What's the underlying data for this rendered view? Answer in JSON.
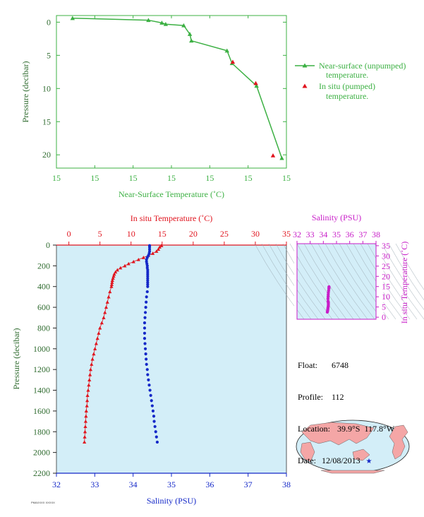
{
  "colors": {
    "green": "#3cb043",
    "red": "#e0141e",
    "blue": "#1428c8",
    "magenta": "#c81ec8",
    "axisgreen": "#2f6b2f",
    "navy": "#1a1a8c",
    "panel_bg": "#d3eef8"
  },
  "top_legend": {
    "near_surface": "Near-surface (unpumped)",
    "near_surface_2": "temperature.",
    "in_situ": "In situ (pumped)",
    "in_situ_2": "temperature."
  },
  "float_info": {
    "float_label": "Float:",
    "float_value": "6748",
    "profile_label": "Profile:",
    "profile_value": "112",
    "location_label": "Location:",
    "location_value": "39.9°S  117.8°W",
    "date_label": "Date:",
    "date_value": "12/08/2013"
  },
  "footer_tag": "PMAXXXX XXXXX",
  "chart_data": [
    {
      "type": "line",
      "xlabel": "Near-Surface Temperature (˚C)",
      "ylabel": "Pressure (decibar)",
      "x_ticks": [
        "15",
        "15",
        "15",
        "15",
        "15",
        "15",
        "15"
      ],
      "y_ticks": [
        "0",
        "5",
        "10",
        "15",
        "20"
      ],
      "ylim": [
        -1,
        22
      ],
      "xlim": [
        0,
        6
      ],
      "y_inverted": true,
      "series": [
        {
          "name": "Near-surface (unpumped) temperature.",
          "x": [
            0.42,
            2.4,
            2.75,
            2.85,
            3.32,
            3.48,
            3.52,
            4.45,
            4.58,
            5.22,
            5.88
          ],
          "y": [
            -0.6,
            -0.3,
            0.1,
            0.3,
            0.5,
            1.8,
            2.8,
            4.3,
            6.2,
            9.6,
            20.5
          ]
        },
        {
          "name": "In situ (pumped) temperature.",
          "x": [
            4.6,
            5.2,
            5.65
          ],
          "y": [
            6.0,
            9.2,
            20.1
          ]
        }
      ],
      "grid": false,
      "legend": "right"
    },
    {
      "type": "scatter",
      "xlabel_top": "In situ Temperature (˚C)",
      "xlabel_bottom": "Salinity (PSU)",
      "ylabel": "Pressure (decibar)",
      "temp_ticks": [
        0,
        5,
        10,
        15,
        20,
        25,
        30,
        35
      ],
      "sal_ticks": [
        32,
        33,
        34,
        35,
        36,
        37,
        38
      ],
      "pres_ticks": [
        0,
        200,
        400,
        600,
        800,
        1000,
        1200,
        1400,
        1600,
        1800,
        2000,
        2200
      ],
      "temp_lim": [
        -2,
        35
      ],
      "sal_lim": [
        32,
        38
      ],
      "pres_lim": [
        0,
        2200
      ],
      "series": [
        {
          "name": "In situ Temperature",
          "pressure": [
            5,
            20,
            40,
            60,
            80,
            100,
            120,
            140,
            160,
            180,
            200,
            220,
            240,
            260,
            280,
            300,
            320,
            340,
            360,
            380,
            400,
            450,
            500,
            550,
            600,
            650,
            700,
            750,
            800,
            850,
            900,
            950,
            1000,
            1050,
            1100,
            1150,
            1200,
            1250,
            1300,
            1350,
            1400,
            1450,
            1500,
            1550,
            1600,
            1650,
            1700,
            1750,
            1800,
            1850,
            1900
          ],
          "values": [
            14.9,
            14.6,
            14.4,
            14.1,
            13.5,
            12.8,
            12.0,
            11.2,
            10.4,
            9.6,
            9.0,
            8.3,
            7.8,
            7.5,
            7.3,
            7.2,
            7.1,
            7.0,
            6.95,
            6.9,
            6.85,
            6.6,
            6.4,
            6.2,
            6.0,
            5.8,
            5.6,
            5.3,
            5.0,
            4.8,
            4.6,
            4.4,
            4.2,
            4.0,
            3.8,
            3.65,
            3.5,
            3.4,
            3.3,
            3.2,
            3.1,
            3.0,
            2.95,
            2.9,
            2.8,
            2.75,
            2.7,
            2.65,
            2.6,
            2.55,
            2.5
          ]
        },
        {
          "name": "Salinity",
          "pressure": [
            5,
            20,
            40,
            60,
            80,
            100,
            120,
            140,
            160,
            180,
            200,
            220,
            240,
            260,
            280,
            300,
            320,
            340,
            360,
            380,
            400,
            450,
            500,
            550,
            600,
            650,
            700,
            750,
            800,
            850,
            900,
            950,
            1000,
            1050,
            1100,
            1150,
            1200,
            1250,
            1300,
            1350,
            1400,
            1450,
            1500,
            1550,
            1600,
            1650,
            1700,
            1750,
            1800,
            1850,
            1900
          ],
          "values": [
            34.43,
            34.43,
            34.43,
            34.43,
            34.42,
            34.4,
            34.37,
            34.35,
            34.35,
            34.36,
            34.37,
            34.37,
            34.38,
            34.38,
            34.38,
            34.38,
            34.38,
            34.38,
            34.38,
            34.38,
            34.38,
            34.37,
            34.35,
            34.34,
            34.33,
            34.32,
            34.31,
            34.3,
            34.3,
            34.3,
            34.3,
            34.31,
            34.32,
            34.33,
            34.34,
            34.35,
            34.37,
            34.38,
            34.4,
            34.42,
            34.44,
            34.46,
            34.48,
            34.5,
            34.52,
            34.54,
            34.55,
            34.57,
            34.59,
            34.61,
            34.63
          ]
        }
      ]
    },
    {
      "type": "scatter",
      "title": "Salinity (PSU)",
      "ylabel": "In situ Temperature (˚C)",
      "x_ticks": [
        32,
        33,
        34,
        35,
        36,
        37,
        38
      ],
      "y_ticks": [
        0,
        5,
        10,
        15,
        20,
        25,
        30,
        35
      ],
      "xlim": [
        32,
        38
      ],
      "ylim": [
        -1,
        36
      ],
      "series": [
        {
          "name": "T-S",
          "x": [
            34.3,
            34.32,
            34.33,
            34.34,
            34.35,
            34.37,
            34.38,
            34.38,
            34.38,
            34.36,
            34.35,
            34.36,
            34.37,
            34.38,
            34.4,
            34.42,
            34.43,
            34.43
          ],
          "y": [
            2.5,
            3.0,
            3.5,
            4.0,
            4.6,
            5.3,
            6.0,
            6.8,
            7.3,
            7.8,
            9.0,
            10.0,
            11.0,
            12.0,
            13.0,
            14.0,
            14.6,
            14.9
          ]
        }
      ]
    }
  ]
}
